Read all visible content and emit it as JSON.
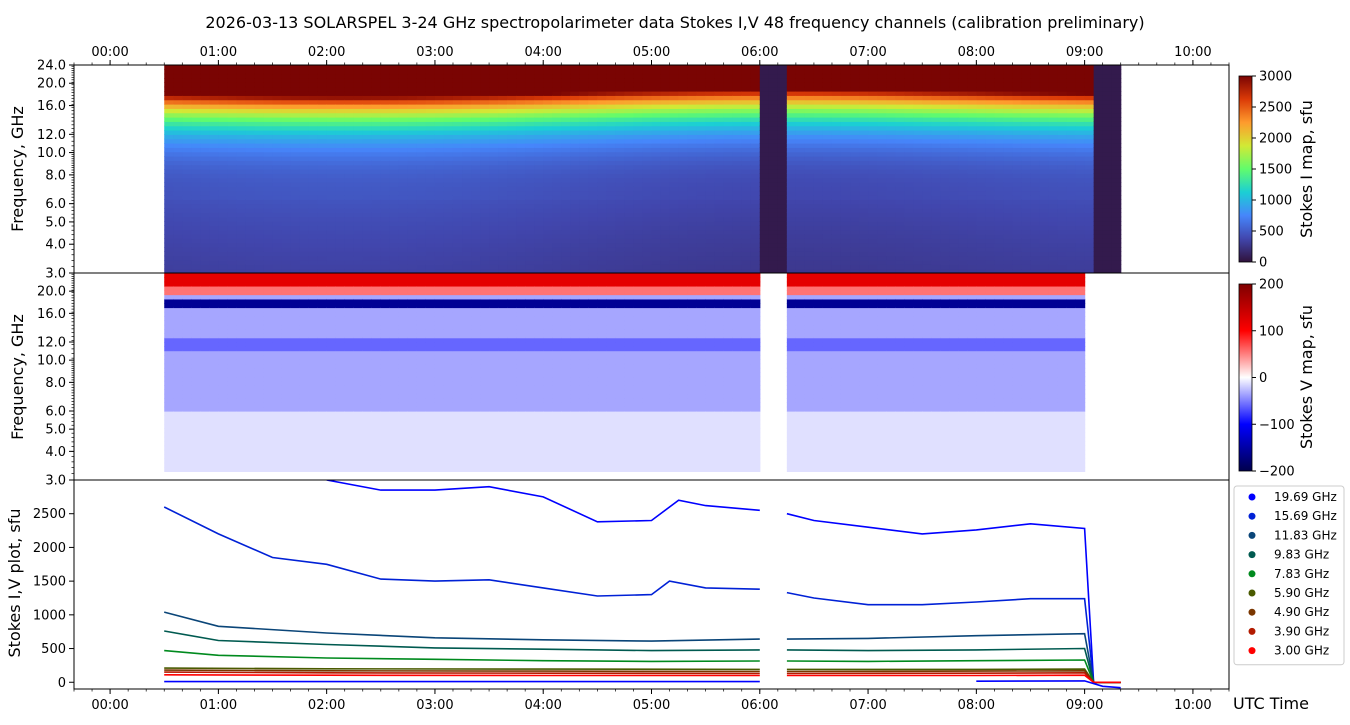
{
  "chart_data": [
    {
      "type": "heatmap",
      "panel": "stokes-i",
      "title": "2026-03-13  SOLARSPEL  3-24 GHz spectropolarimeter data   Stokes I,V   48 frequency channels   (calibration preliminary)",
      "ylabel": "Frequency, GHz",
      "colorbar_label": "Stokes I map, sfu",
      "colorbar_ticks": [
        "0",
        "500",
        "1000",
        "1500",
        "2000",
        "2500",
        "3000"
      ],
      "clim": [
        0,
        3000
      ],
      "ylim": [
        3.0,
        24.0
      ],
      "y_scale": "log",
      "y_ticks": [
        "3.0",
        "4.0",
        "5.0",
        "6.0",
        "8.0",
        "10.0",
        "12.0",
        "16.0",
        "20.0",
        "24.0"
      ],
      "x_ticks": [
        "00:00",
        "01:00",
        "02:00",
        "03:00",
        "04:00",
        "05:00",
        "06:00",
        "07:00",
        "08:00",
        "09:00",
        "10:00"
      ],
      "xlim": [
        "23:40",
        "10:20"
      ],
      "data_start": "00:30",
      "data_end": "09:20",
      "gaps": [
        [
          "06:00",
          "06:14"
        ],
        [
          "09:01",
          "09:18"
        ]
      ],
      "colormap": [
        "#30123b",
        "#4146ad",
        "#4686fb",
        "#1bcfd4",
        "#61fc6c",
        "#d2e935",
        "#fe9b2d",
        "#db3a07",
        "#7a0403"
      ]
    },
    {
      "type": "heatmap",
      "panel": "stokes-v",
      "ylabel": "Frequency, GHz",
      "colorbar_label": "Stokes V map, sfu",
      "colorbar_ticks": [
        "−200",
        "−100",
        "0",
        "100",
        "200"
      ],
      "clim": [
        -200,
        200
      ],
      "ylim": [
        3.0,
        24.0
      ],
      "y_scale": "log",
      "y_ticks": [
        "3.0",
        "4.0",
        "5.0",
        "6.0",
        "8.0",
        "10.0",
        "12.0",
        "16.0",
        "20.0"
      ],
      "colormap": [
        "#00004c",
        "#0000ff",
        "#ffffff",
        "#ff0000",
        "#7f0000"
      ]
    },
    {
      "type": "scatter",
      "panel": "time-profiles",
      "ylabel": "Stokes I,V plot, sfu",
      "xlabel": "UTC Time",
      "ylim": [
        -100,
        3000
      ],
      "y_ticks": [
        0,
        500,
        1000,
        1500,
        2000,
        2500
      ],
      "x_ticks": [
        "00:00",
        "01:00",
        "02:00",
        "03:00",
        "04:00",
        "05:00",
        "06:00",
        "07:00",
        "08:00",
        "09:00",
        "10:00"
      ],
      "legend_position": "right",
      "gaps": [
        [
          "06:00",
          "06:14"
        ]
      ],
      "series": [
        {
          "name": "19.69 GHz",
          "color": "#0000ff",
          "points": [
            [
              "02:00",
              3000
            ],
            [
              "02:30",
              2850
            ],
            [
              "03:00",
              2850
            ],
            [
              "03:30",
              2900
            ],
            [
              "04:00",
              2750
            ],
            [
              "04:30",
              2380
            ],
            [
              "05:00",
              2400
            ],
            [
              "05:15",
              2700
            ],
            [
              "05:30",
              2620
            ],
            [
              "06:00",
              2550
            ],
            [
              "06:15",
              2500
            ],
            [
              "06:30",
              2400
            ],
            [
              "07:00",
              2300
            ],
            [
              "07:30",
              2200
            ],
            [
              "08:00",
              2260
            ],
            [
              "08:30",
              2350
            ],
            [
              "09:00",
              2280
            ],
            [
              "09:05",
              0
            ],
            [
              "09:20",
              0
            ]
          ]
        },
        {
          "name": "15.69 GHz",
          "color": "#0021d6",
          "points": [
            [
              "00:30",
              2600
            ],
            [
              "01:00",
              2200
            ],
            [
              "01:30",
              1850
            ],
            [
              "02:00",
              1750
            ],
            [
              "02:30",
              1530
            ],
            [
              "03:00",
              1500
            ],
            [
              "03:30",
              1520
            ],
            [
              "04:00",
              1400
            ],
            [
              "04:30",
              1280
            ],
            [
              "05:00",
              1300
            ],
            [
              "05:10",
              1500
            ],
            [
              "05:30",
              1400
            ],
            [
              "06:00",
              1380
            ],
            [
              "06:15",
              1330
            ],
            [
              "06:30",
              1250
            ],
            [
              "07:00",
              1150
            ],
            [
              "07:30",
              1150
            ],
            [
              "08:00",
              1190
            ],
            [
              "08:30",
              1240
            ],
            [
              "09:00",
              1240
            ],
            [
              "09:05",
              0
            ],
            [
              "09:20",
              0
            ]
          ]
        },
        {
          "name": "11.83 GHz",
          "color": "#0a4578",
          "points": [
            [
              "00:30",
              1040
            ],
            [
              "01:00",
              830
            ],
            [
              "02:00",
              730
            ],
            [
              "03:00",
              660
            ],
            [
              "04:00",
              630
            ],
            [
              "05:00",
              610
            ],
            [
              "06:00",
              640
            ],
            [
              "06:15",
              640
            ],
            [
              "07:00",
              650
            ],
            [
              "08:00",
              690
            ],
            [
              "09:00",
              720
            ],
            [
              "09:05",
              0
            ],
            [
              "09:20",
              0
            ]
          ]
        },
        {
          "name": "9.83 GHz",
          "color": "#005a50",
          "points": [
            [
              "00:30",
              760
            ],
            [
              "01:00",
              620
            ],
            [
              "02:00",
              560
            ],
            [
              "03:00",
              510
            ],
            [
              "04:00",
              490
            ],
            [
              "05:00",
              470
            ],
            [
              "06:00",
              480
            ],
            [
              "06:15",
              480
            ],
            [
              "07:00",
              470
            ],
            [
              "08:00",
              480
            ],
            [
              "09:00",
              500
            ],
            [
              "09:05",
              0
            ],
            [
              "09:20",
              0
            ]
          ]
        },
        {
          "name": "7.83 GHz",
          "color": "#008a1e",
          "points": [
            [
              "00:30",
              470
            ],
            [
              "01:00",
              400
            ],
            [
              "02:00",
              360
            ],
            [
              "03:00",
              340
            ],
            [
              "04:00",
              320
            ],
            [
              "05:00",
              310
            ],
            [
              "06:00",
              315
            ],
            [
              "06:15",
              315
            ],
            [
              "07:00",
              310
            ],
            [
              "08:00",
              320
            ],
            [
              "09:00",
              330
            ],
            [
              "09:05",
              0
            ],
            [
              "09:20",
              0
            ]
          ]
        },
        {
          "name": "5.90 GHz",
          "color": "#4a5a00",
          "points": [
            [
              "00:30",
              210
            ],
            [
              "02:00",
              200
            ],
            [
              "04:00",
              195
            ],
            [
              "06:00",
              190
            ],
            [
              "06:15",
              190
            ],
            [
              "08:00",
              190
            ],
            [
              "09:00",
              195
            ],
            [
              "09:05",
              0
            ],
            [
              "09:20",
              0
            ]
          ]
        },
        {
          "name": "4.90 GHz",
          "color": "#7a3600",
          "points": [
            [
              "00:30",
              180
            ],
            [
              "02:00",
              170
            ],
            [
              "04:00",
              165
            ],
            [
              "06:00",
              160
            ],
            [
              "06:15",
              160
            ],
            [
              "08:00",
              165
            ],
            [
              "09:00",
              170
            ],
            [
              "09:05",
              0
            ],
            [
              "09:20",
              0
            ]
          ]
        },
        {
          "name": "3.90 GHz",
          "color": "#b31b00",
          "points": [
            [
              "00:30",
              150
            ],
            [
              "02:00",
              140
            ],
            [
              "04:00",
              135
            ],
            [
              "06:00",
              130
            ],
            [
              "06:15",
              130
            ],
            [
              "08:00",
              135
            ],
            [
              "09:00",
              140
            ],
            [
              "09:05",
              0
            ],
            [
              "09:20",
              0
            ]
          ]
        },
        {
          "name": "3.00 GHz",
          "color": "#ff0000",
          "points": [
            [
              "00:30",
              110
            ],
            [
              "02:00",
              105
            ],
            [
              "04:00",
              100
            ],
            [
              "06:00",
              100
            ],
            [
              "06:15",
              100
            ],
            [
              "08:00",
              100
            ],
            [
              "09:00",
              105
            ],
            [
              "09:05",
              0
            ],
            [
              "09:20",
              0
            ]
          ]
        }
      ],
      "v_series_color": "#0000ff",
      "v_series_points": [
        [
          "00:30",
          10
        ],
        [
          "03:00",
          10
        ],
        [
          "06:00",
          10
        ],
        [
          "08:00",
          15
        ],
        [
          "09:00",
          20
        ],
        [
          "09:10",
          -60
        ],
        [
          "09:20",
          -80
        ]
      ]
    }
  ]
}
